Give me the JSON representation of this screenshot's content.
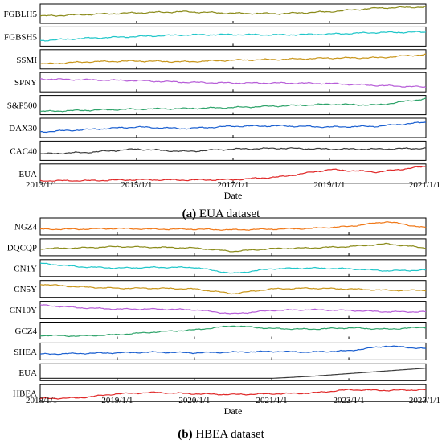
{
  "chart_data": [
    {
      "type": "line",
      "caption_letter": "(a)",
      "caption_text": "EUA dataset",
      "xlabel": "Date",
      "x_ticks": [
        "2013/1/1",
        "2015/1/1",
        "2017/1/1",
        "2019/1/1",
        "2021/1/1"
      ],
      "x_range": [
        "2013/1/1",
        "2021/1/1"
      ],
      "grid": false,
      "legend": "none",
      "series": [
        {
          "name": "FGBLH5",
          "color": "#8b8b1a",
          "x": [
            "2013/1/1",
            "2014/1/1",
            "2015/1/1",
            "2016/1/1",
            "2017/1/1",
            "2018/1/1",
            "2019/1/1",
            "2020/1/1",
            "2021/1/1"
          ],
          "y": [
            0.35,
            0.45,
            0.55,
            0.62,
            0.52,
            0.5,
            0.62,
            0.85,
            0.92
          ]
        },
        {
          "name": "FGBSH5",
          "color": "#1fc6c9",
          "x": [
            "2013/1/1",
            "2014/1/1",
            "2015/1/1",
            "2016/1/1",
            "2017/1/1",
            "2018/1/1",
            "2019/1/1",
            "2020/1/1",
            "2021/1/1"
          ],
          "y": [
            0.25,
            0.4,
            0.5,
            0.6,
            0.62,
            0.6,
            0.65,
            0.75,
            0.78
          ]
        },
        {
          "name": "SSMI",
          "color": "#c8951a",
          "x": [
            "2013/1/1",
            "2014/1/1",
            "2015/1/1",
            "2016/1/1",
            "2017/1/1",
            "2018/1/1",
            "2019/1/1",
            "2020/1/1",
            "2021/1/1"
          ],
          "y": [
            0.2,
            0.35,
            0.4,
            0.35,
            0.45,
            0.5,
            0.58,
            0.6,
            0.8
          ]
        },
        {
          "name": "SPNY",
          "color": "#b75ed8",
          "x": [
            "2013/1/1",
            "2014/1/1",
            "2015/1/1",
            "2016/1/1",
            "2017/1/1",
            "2018/1/1",
            "2019/1/1",
            "2020/1/1",
            "2021/1/1"
          ],
          "y": [
            0.7,
            0.65,
            0.6,
            0.5,
            0.45,
            0.45,
            0.42,
            0.3,
            0.2
          ]
        },
        {
          "name": "S&P500",
          "color": "#2ea36a",
          "x": [
            "2013/1/1",
            "2014/1/1",
            "2015/1/1",
            "2016/1/1",
            "2017/1/1",
            "2018/1/1",
            "2019/1/1",
            "2020/1/1",
            "2021/1/1"
          ],
          "y": [
            0.1,
            0.18,
            0.25,
            0.28,
            0.35,
            0.45,
            0.55,
            0.5,
            0.9
          ]
        },
        {
          "name": "DAX30",
          "color": "#1a5fd0",
          "x": [
            "2013/1/1",
            "2014/1/1",
            "2015/1/1",
            "2016/1/1",
            "2017/1/1",
            "2018/1/1",
            "2019/1/1",
            "2020/1/1",
            "2021/1/1"
          ],
          "y": [
            0.25,
            0.4,
            0.55,
            0.45,
            0.6,
            0.62,
            0.55,
            0.6,
            0.85
          ]
        },
        {
          "name": "CAC40",
          "color": "#3a3a3a",
          "x": [
            "2013/1/1",
            "2014/1/1",
            "2015/1/1",
            "2016/1/1",
            "2017/1/1",
            "2018/1/1",
            "2019/1/1",
            "2020/1/1",
            "2021/1/1"
          ],
          "y": [
            0.3,
            0.4,
            0.6,
            0.45,
            0.6,
            0.65,
            0.6,
            0.6,
            0.65
          ]
        },
        {
          "name": "EUA",
          "color": "#e02828",
          "x": [
            "2013/1/1",
            "2014/1/1",
            "2015/1/1",
            "2016/1/1",
            "2017/1/1",
            "2018/1/1",
            "2019/1/1",
            "2020/1/1",
            "2021/1/1"
          ],
          "y": [
            0.05,
            0.06,
            0.12,
            0.1,
            0.12,
            0.3,
            0.75,
            0.6,
            0.95
          ]
        }
      ]
    },
    {
      "type": "line",
      "caption_letter": "(b)",
      "caption_text": "HBEA dataset",
      "xlabel": "Date",
      "x_ticks": [
        "2018/1/1",
        "2019/1/1",
        "2020/1/1",
        "2021/1/1",
        "2022/1/1",
        "2023/1/1"
      ],
      "x_range": [
        "2018/1/1",
        "2023/1/1"
      ],
      "grid": false,
      "legend": "none",
      "series": [
        {
          "name": "NGZ4",
          "color": "#f07818",
          "x": [
            "2018/1/1",
            "2018/7/1",
            "2019/1/1",
            "2019/7/1",
            "2020/1/1",
            "2020/7/1",
            "2021/1/1",
            "2021/7/1",
            "2022/1/1",
            "2022/7/1",
            "2023/1/1"
          ],
          "y": [
            0.3,
            0.3,
            0.35,
            0.3,
            0.3,
            0.25,
            0.3,
            0.35,
            0.5,
            0.85,
            0.4
          ]
        },
        {
          "name": "DQCQP",
          "color": "#8b8b1a",
          "x": [
            "2018/1/1",
            "2018/7/1",
            "2019/1/1",
            "2019/7/1",
            "2020/1/1",
            "2020/7/1",
            "2021/1/1",
            "2021/7/1",
            "2022/1/1",
            "2022/7/1",
            "2023/1/1"
          ],
          "y": [
            0.4,
            0.45,
            0.55,
            0.5,
            0.45,
            0.2,
            0.4,
            0.45,
            0.55,
            0.75,
            0.45
          ]
        },
        {
          "name": "CN1Y",
          "color": "#1fc6c9",
          "x": [
            "2018/1/1",
            "2018/7/1",
            "2019/1/1",
            "2019/7/1",
            "2020/1/1",
            "2020/7/1",
            "2021/1/1",
            "2021/7/1",
            "2022/1/1",
            "2022/7/1",
            "2023/1/1"
          ],
          "y": [
            0.85,
            0.6,
            0.5,
            0.55,
            0.55,
            0.1,
            0.45,
            0.5,
            0.45,
            0.3,
            0.35
          ]
        },
        {
          "name": "CN5Y",
          "color": "#c8951a",
          "x": [
            "2018/1/1",
            "2018/7/1",
            "2019/1/1",
            "2019/7/1",
            "2020/1/1",
            "2020/7/1",
            "2021/1/1",
            "2021/7/1",
            "2022/1/1",
            "2022/7/1",
            "2023/1/1"
          ],
          "y": [
            0.85,
            0.65,
            0.55,
            0.55,
            0.5,
            0.15,
            0.5,
            0.55,
            0.5,
            0.4,
            0.4
          ]
        },
        {
          "name": "CN10Y",
          "color": "#b75ed8",
          "x": [
            "2018/1/1",
            "2018/7/1",
            "2019/1/1",
            "2019/7/1",
            "2020/1/1",
            "2020/7/1",
            "2021/1/1",
            "2021/7/1",
            "2022/1/1",
            "2022/7/1",
            "2023/1/1"
          ],
          "y": [
            0.85,
            0.65,
            0.55,
            0.55,
            0.5,
            0.2,
            0.45,
            0.5,
            0.45,
            0.35,
            0.35
          ]
        },
        {
          "name": "GCZ4",
          "color": "#2ea36a",
          "x": [
            "2018/1/1",
            "2018/7/1",
            "2019/1/1",
            "2019/7/1",
            "2020/1/1",
            "2020/7/1",
            "2021/1/1",
            "2021/7/1",
            "2022/1/1",
            "2022/7/1",
            "2023/1/1"
          ],
          "y": [
            0.15,
            0.1,
            0.2,
            0.4,
            0.55,
            0.85,
            0.65,
            0.6,
            0.7,
            0.6,
            0.75
          ]
        },
        {
          "name": "SHEA",
          "color": "#1a5fd0",
          "x": [
            "2018/1/1",
            "2018/7/1",
            "2019/1/1",
            "2019/7/1",
            "2020/1/1",
            "2020/7/1",
            "2021/1/1",
            "2021/7/1",
            "2022/1/1",
            "2022/7/1",
            "2023/1/1"
          ],
          "y": [
            0.3,
            0.35,
            0.4,
            0.45,
            0.4,
            0.45,
            0.5,
            0.45,
            0.55,
            0.9,
            0.7
          ]
        },
        {
          "name": "EUA",
          "color": "#3a3a3a",
          "x": [
            "2018/1/1",
            "2018/7/1",
            "2019/1/1",
            "2019/7/1",
            "2020/1/1",
            "2020/7/1",
            "2021/1/1",
            "2021/7/1",
            "2022/1/1",
            "2022/7/1",
            "2023/1/1"
          ],
          "y": [
            0.05,
            0.05,
            0.05,
            0.05,
            0.05,
            0.05,
            0.05,
            0.2,
            0.4,
            0.6,
            0.8
          ]
        },
        {
          "name": "HBEA",
          "color": "#e02828",
          "x": [
            "2018/1/1",
            "2018/7/1",
            "2019/1/1",
            "2019/7/1",
            "2020/1/1",
            "2020/7/1",
            "2021/1/1",
            "2021/7/1",
            "2022/1/1",
            "2022/7/1",
            "2023/1/1"
          ],
          "y": [
            0.1,
            0.15,
            0.45,
            0.55,
            0.45,
            0.4,
            0.45,
            0.5,
            0.75,
            0.7,
            0.75
          ]
        }
      ]
    }
  ]
}
